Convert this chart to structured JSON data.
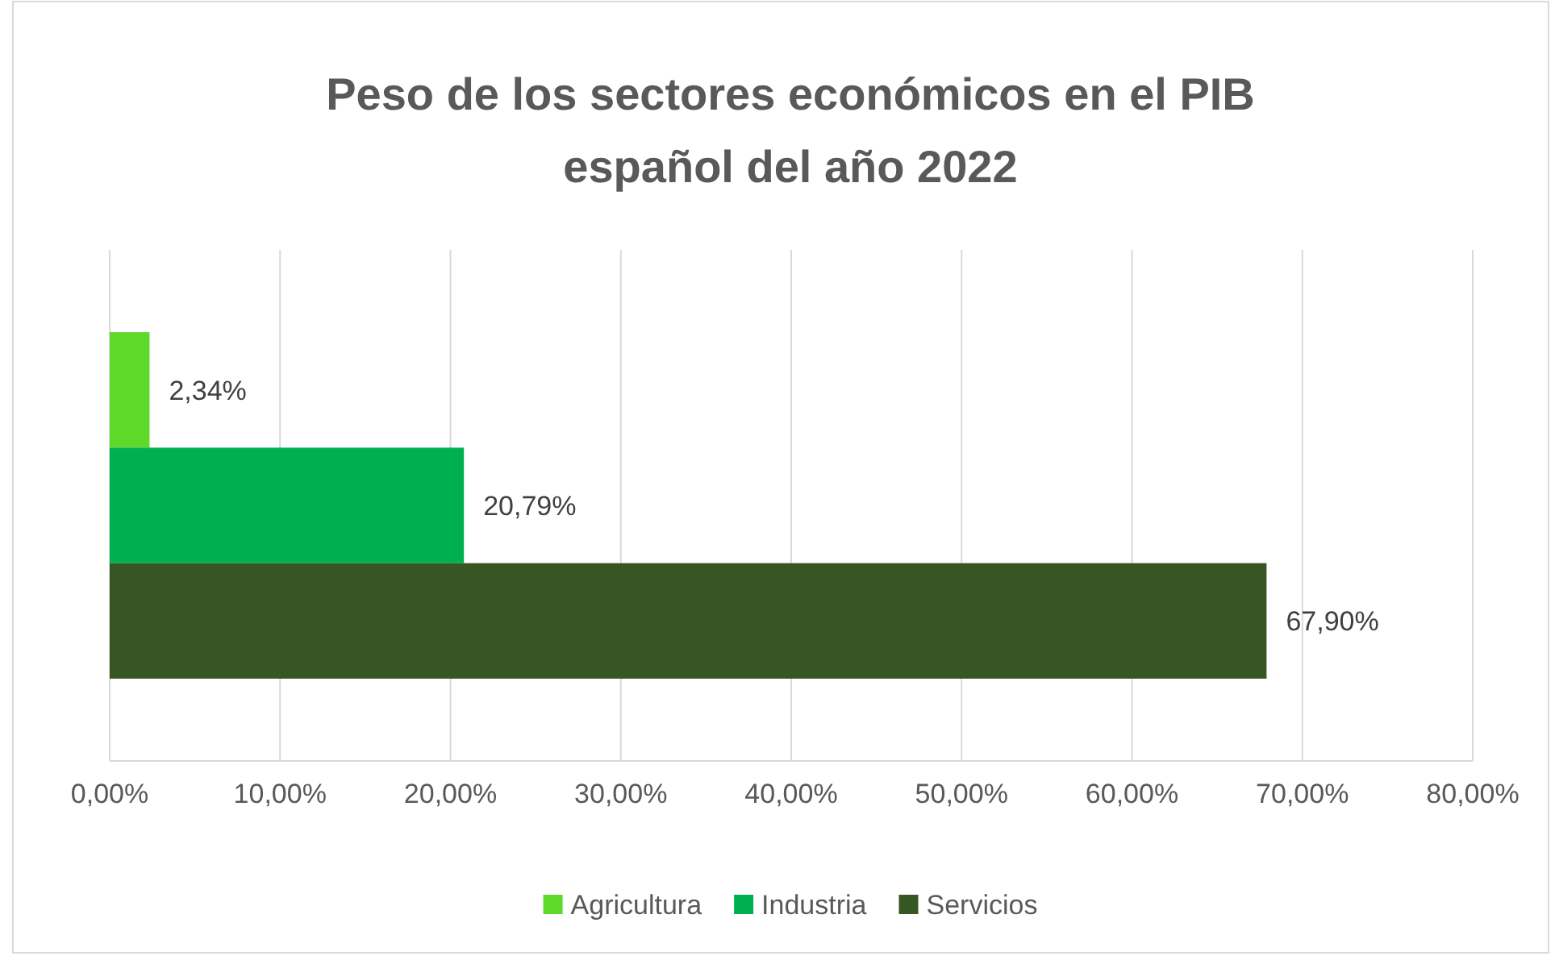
{
  "chart_data": {
    "type": "bar",
    "orientation": "horizontal",
    "title": "Peso de los sectores económicos en el PIB español del año 2022",
    "categories": [
      null
    ],
    "series": [
      {
        "name": "Agricultura",
        "color": "#5fd92a",
        "values": [
          2.34
        ],
        "value_labels": [
          "2,34%"
        ]
      },
      {
        "name": "Industria",
        "color": "#00b050",
        "values": [
          20.79
        ],
        "value_labels": [
          "20,79%"
        ]
      },
      {
        "name": "Servicios",
        "color": "#375623",
        "values": [
          67.9
        ],
        "value_labels": [
          "67,90%"
        ]
      }
    ],
    "xlim": [
      0,
      80
    ],
    "xticks": [
      {
        "value": 0,
        "label": "0,00%"
      },
      {
        "value": 10,
        "label": "10,00%"
      },
      {
        "value": 20,
        "label": "20,00%"
      },
      {
        "value": 30,
        "label": "30,00%"
      },
      {
        "value": 40,
        "label": "40,00%"
      },
      {
        "value": 50,
        "label": "50,00%"
      },
      {
        "value": 60,
        "label": "60,00%"
      },
      {
        "value": 70,
        "label": "70,00%"
      },
      {
        "value": 80,
        "label": "80,00%"
      }
    ],
    "grid": "x",
    "legend": "bottom"
  }
}
